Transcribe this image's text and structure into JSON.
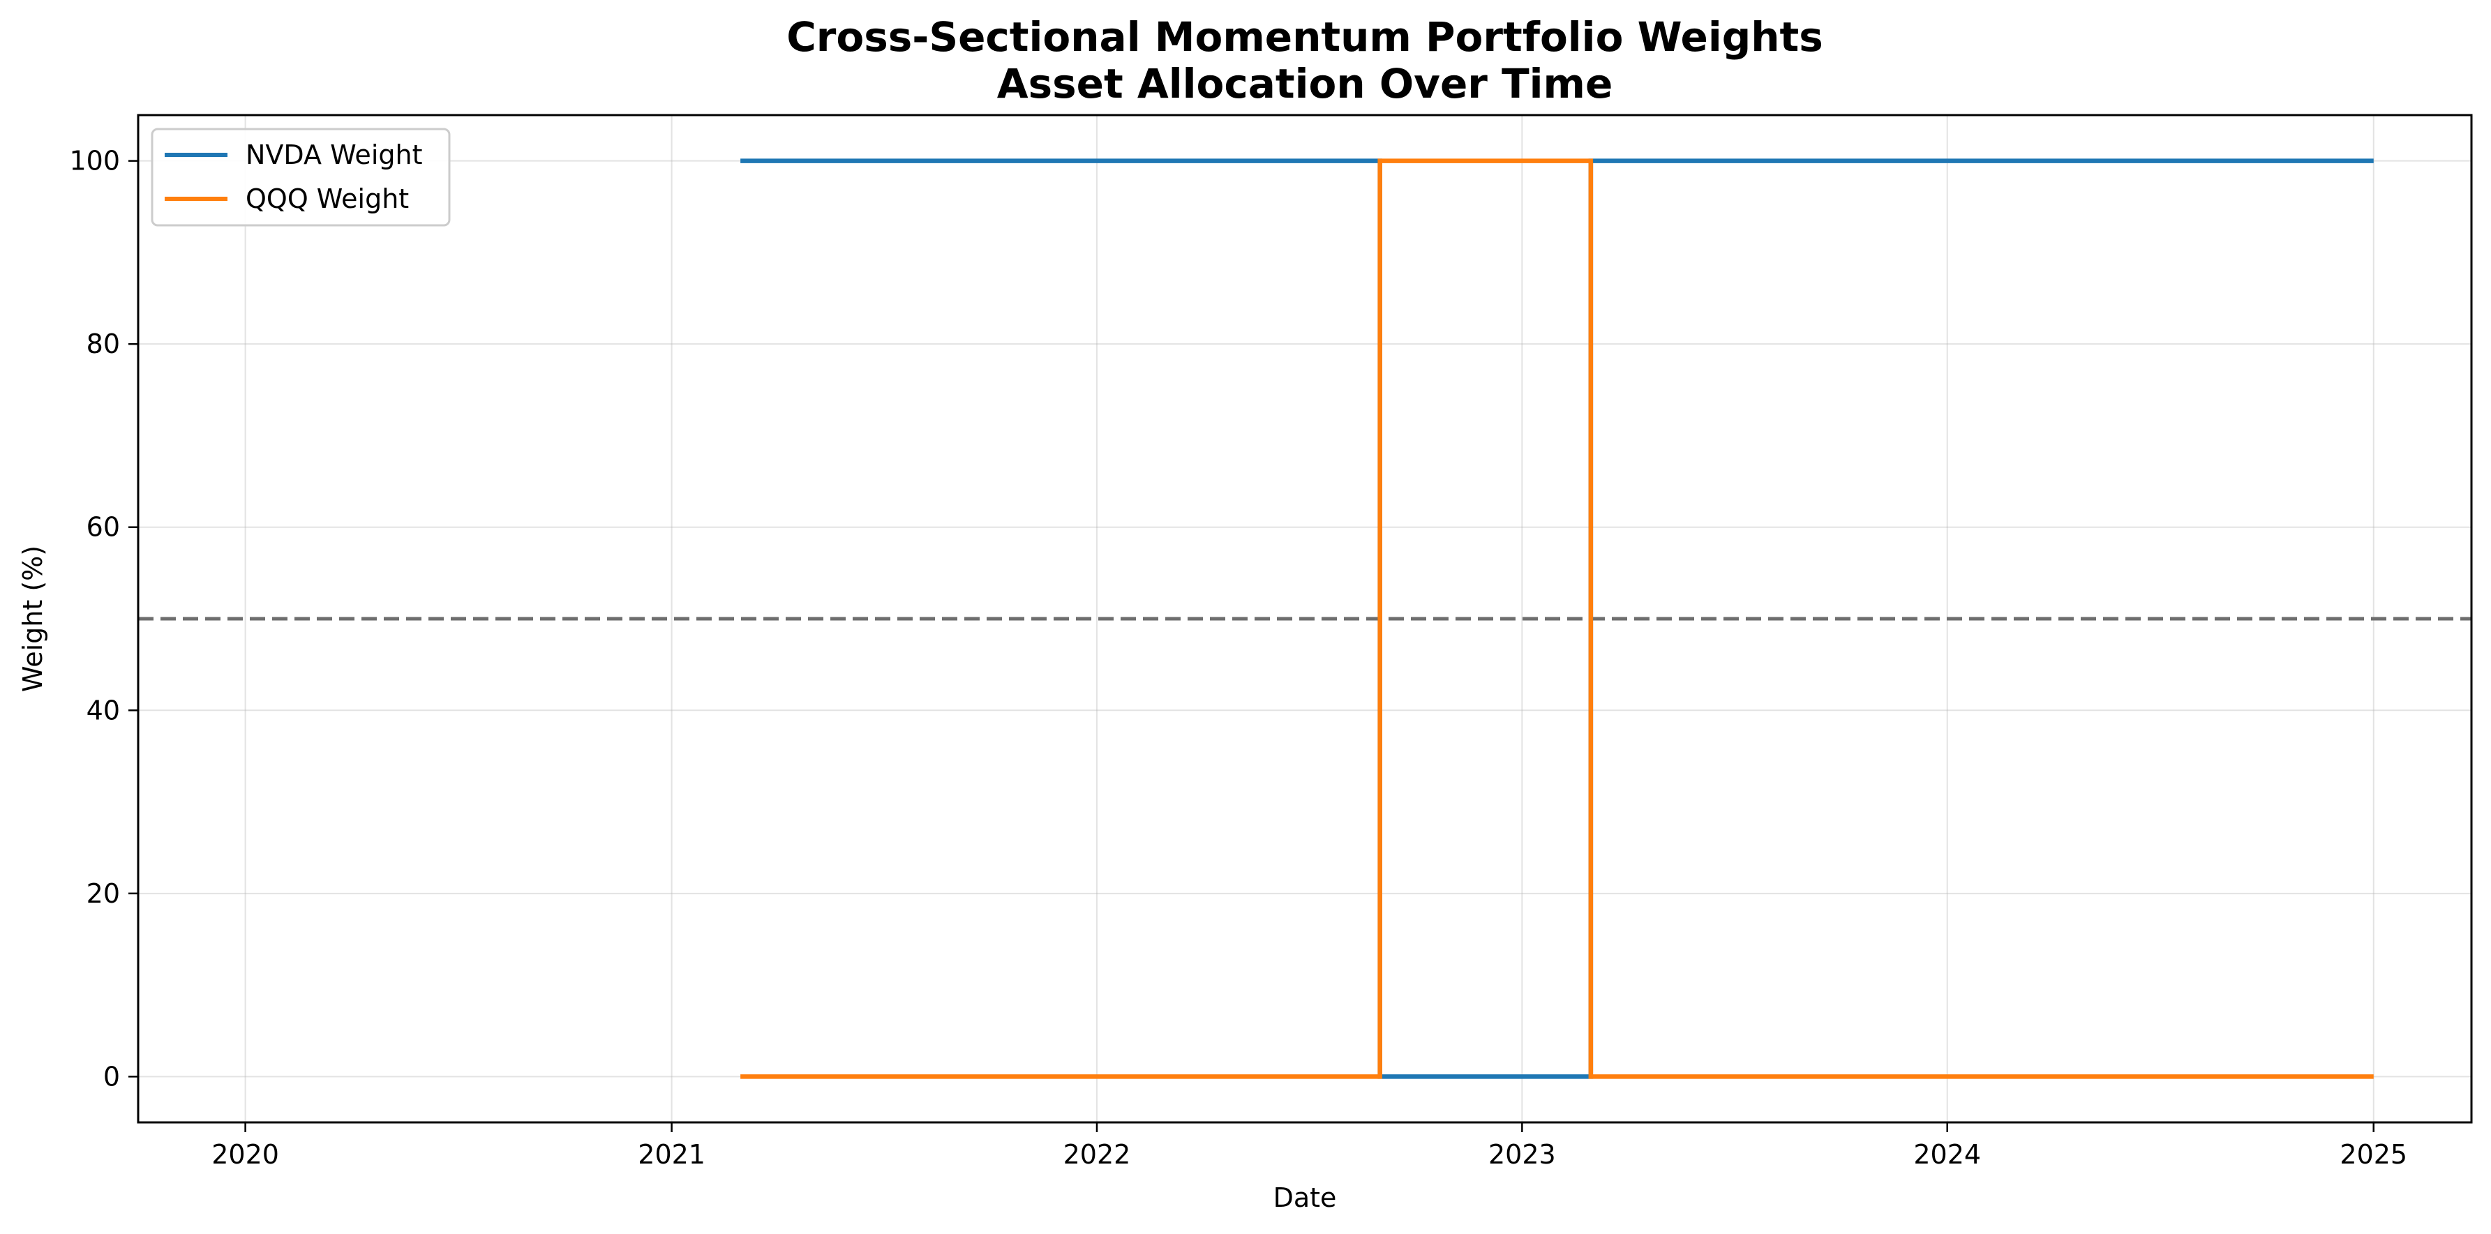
{
  "chart_data": {
    "type": "line",
    "title_lines": [
      "Cross-Sectional Momentum Portfolio Weights",
      "Asset Allocation Over Time"
    ],
    "xlabel": "Date",
    "ylabel": "Weight (%)",
    "xlim": [
      "2019-10-01",
      "2025-03-26"
    ],
    "ylim": [
      -5,
      105
    ],
    "x_ticks": [
      "2020",
      "2021",
      "2022",
      "2023",
      "2024",
      "2025"
    ],
    "y_ticks": [
      0,
      20,
      40,
      60,
      80,
      100
    ],
    "grid": true,
    "legend_position": "upper left",
    "reference_line": {
      "y": 50,
      "color": "#6e6e6e",
      "style": "dashed"
    },
    "series": [
      {
        "name": "NVDA Weight",
        "color": "#1f77b4",
        "step": "post",
        "x": [
          "2021-03-01",
          "2022-09-01",
          "2023-03-01",
          "2025-01-01"
        ],
        "y": [
          100,
          0,
          100,
          100
        ]
      },
      {
        "name": "QQQ Weight",
        "color": "#ff7f0e",
        "step": "post",
        "x": [
          "2021-03-01",
          "2022-09-01",
          "2023-03-01",
          "2025-01-01"
        ],
        "y": [
          0,
          100,
          0,
          0
        ]
      }
    ]
  }
}
